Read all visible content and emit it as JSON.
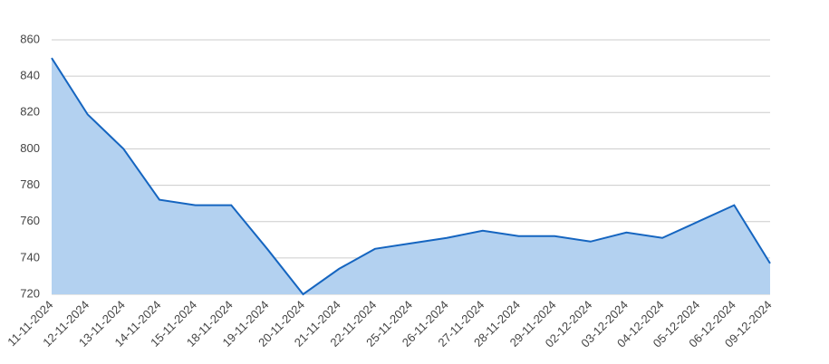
{
  "chart_data": {
    "type": "area",
    "categories": [
      "11-11-2024",
      "12-11-2024",
      "13-11-2024",
      "14-11-2024",
      "15-11-2024",
      "18-11-2024",
      "19-11-2024",
      "20-11-2024",
      "21-11-2024",
      "22-11-2024",
      "25-11-2024",
      "26-11-2024",
      "27-11-2024",
      "28-11-2024",
      "29-11-2024",
      "02-12-2024",
      "03-12-2024",
      "04-12-2024",
      "05-12-2024",
      "06-12-2024",
      "09-12-2024"
    ],
    "values": [
      850,
      819,
      800,
      772,
      769,
      769,
      745,
      720,
      734,
      745,
      748,
      751,
      755,
      752,
      752,
      749,
      754,
      751,
      760,
      769,
      737
    ],
    "color": "#1565c0",
    "fill": "#b3d1f0",
    "ylim": [
      720,
      860
    ],
    "yticks": [
      720,
      740,
      760,
      780,
      800,
      820,
      840,
      860
    ],
    "grid": true
  }
}
